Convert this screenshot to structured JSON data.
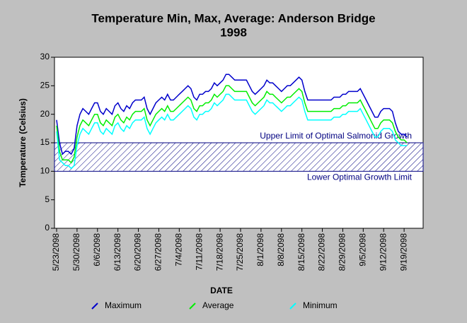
{
  "chart_data": {
    "type": "line",
    "title": "Temperature Min, Max, Average: Anderson Bridge",
    "subtitle": "1998",
    "x_label": "DATE",
    "y_label": "Temperature (Celsius)",
    "categories": [
      "5/23/2098",
      null,
      null,
      null,
      null,
      null,
      null,
      "5/30/2098",
      null,
      null,
      null,
      null,
      null,
      null,
      "6/6/2098",
      null,
      null,
      null,
      null,
      null,
      null,
      "6/13/2098",
      null,
      null,
      null,
      null,
      null,
      null,
      "6/20/2098",
      null,
      null,
      null,
      null,
      null,
      null,
      "6/27/2098",
      null,
      null,
      null,
      null,
      null,
      null,
      "7/4/2098",
      null,
      null,
      null,
      null,
      null,
      null,
      "7/11/2098",
      null,
      null,
      null,
      null,
      null,
      null,
      "7/18/2098",
      null,
      null,
      null,
      null,
      null,
      null,
      "7/25/2098",
      null,
      null,
      null,
      null,
      null,
      null,
      "8/1/2098",
      null,
      null,
      null,
      null,
      null,
      null,
      "8/8/2098",
      null,
      null,
      null,
      null,
      null,
      null,
      "8/15/2098",
      null,
      null,
      null,
      null,
      null,
      null,
      "8/22/2098",
      null,
      null,
      null,
      null,
      null,
      null,
      "8/29/2098",
      null,
      null,
      null,
      null,
      null,
      null,
      "9/5/2098",
      null,
      null,
      null,
      null,
      null,
      null,
      "9/12/2098",
      null,
      null,
      null,
      null,
      null,
      null,
      "9/19/2098",
      null,
      null,
      null,
      null,
      null,
      null,
      null
    ],
    "series": [
      {
        "name": "Maximum",
        "color": "#0000cc",
        "values": [
          19,
          15,
          13,
          13.5,
          13.5,
          13,
          14,
          18,
          20,
          21,
          20.5,
          20,
          21,
          22,
          22,
          20.5,
          20,
          21,
          20.5,
          20,
          21.5,
          22,
          21,
          20.5,
          21.5,
          21,
          22,
          22.5,
          22.5,
          22.5,
          23,
          21,
          20,
          21,
          22,
          22.5,
          23,
          22.5,
          23.5,
          22.5,
          22.5,
          23,
          23.5,
          24,
          24.5,
          25,
          24.5,
          23,
          22.5,
          23.5,
          23.5,
          24,
          24,
          24.5,
          25.5,
          25,
          25.5,
          26,
          27,
          27,
          26.5,
          26,
          26,
          26,
          26,
          26,
          25,
          24,
          23.5,
          24,
          24.5,
          25,
          26,
          25.5,
          25.5,
          25,
          24.5,
          24,
          24.5,
          25,
          25,
          25.5,
          26,
          26.5,
          26,
          24,
          22.5,
          22.5,
          22.5,
          22.5,
          22.5,
          22.5,
          22.5,
          22.5,
          22.5,
          23,
          23,
          23,
          23.5,
          23.5,
          24,
          24,
          24,
          24,
          24.5,
          23.5,
          22.5,
          21.5,
          20.5,
          19.5,
          19.5,
          20.5,
          21,
          21,
          21,
          20.5,
          18.5,
          17,
          16.5,
          16.5,
          16,
          null,
          null,
          null,
          null,
          null,
          null
        ]
      },
      {
        "name": "Average",
        "color": "#00ee00",
        "values": [
          18,
          13.5,
          12,
          12,
          12,
          11.5,
          12.5,
          16,
          18,
          19,
          18.5,
          18,
          19,
          20,
          20,
          18.5,
          18,
          19,
          18.5,
          18,
          19.5,
          20,
          19,
          18.5,
          19.5,
          19,
          20,
          20.5,
          20.5,
          20.5,
          21,
          19,
          18,
          19,
          20,
          20.5,
          21,
          20.5,
          21.5,
          20.5,
          20.5,
          21,
          21.5,
          22,
          22.5,
          23,
          22.5,
          21,
          20.5,
          21.5,
          21.5,
          22,
          22,
          22.5,
          23.5,
          23,
          23.5,
          24,
          25,
          25,
          24.5,
          24,
          24,
          24,
          24,
          24,
          23,
          22,
          21.5,
          22,
          22.5,
          23,
          24,
          23.5,
          23.5,
          23,
          22.5,
          22,
          22.5,
          23,
          23,
          23.5,
          24,
          24.5,
          24,
          22,
          20.5,
          20.5,
          20.5,
          20.5,
          20.5,
          20.5,
          20.5,
          20.5,
          20.5,
          21,
          21,
          21,
          21.5,
          21.5,
          22,
          22,
          22,
          22,
          22.5,
          21.5,
          20.5,
          19.5,
          18.5,
          17.5,
          17.5,
          18.5,
          19,
          19,
          19,
          18.5,
          17,
          16,
          15.5,
          15.5,
          15,
          null,
          null,
          null,
          null,
          null,
          null
        ]
      },
      {
        "name": "Minimum",
        "color": "#00ffff",
        "values": [
          17,
          12,
          11.5,
          11,
          11,
          10.5,
          11,
          14.5,
          16.5,
          17.5,
          17,
          16.5,
          17.5,
          18.5,
          18.5,
          17,
          16.5,
          17.5,
          17,
          16.5,
          18,
          18.5,
          17.5,
          17,
          18,
          17.5,
          18.5,
          19,
          19,
          19,
          19.5,
          17.5,
          16.5,
          17.5,
          18.5,
          19,
          19.5,
          19,
          20,
          19,
          19,
          19.5,
          20,
          20.5,
          21,
          21.5,
          21,
          19.5,
          19,
          20,
          20,
          20.5,
          20.5,
          21,
          22,
          21.5,
          22,
          22.5,
          23.5,
          23.5,
          23,
          22.5,
          22.5,
          22.5,
          22.5,
          22.5,
          21.5,
          20.5,
          20,
          20.5,
          21,
          21.5,
          22.5,
          22,
          22,
          21.5,
          21,
          20.5,
          21,
          21.5,
          21.5,
          22,
          22.5,
          23,
          22.5,
          20.5,
          19,
          19,
          19,
          19,
          19,
          19,
          19,
          19,
          19,
          19.5,
          19.5,
          19.5,
          20,
          20,
          20.5,
          20.5,
          20.5,
          20.5,
          21,
          20,
          19,
          18,
          17,
          16,
          16,
          17,
          17.5,
          17.5,
          17.5,
          17,
          15.5,
          15,
          14.5,
          14.5,
          14.5,
          null,
          null,
          null,
          null,
          null,
          null
        ]
      }
    ],
    "ylim": [
      0,
      30
    ],
    "yticks": [
      0,
      5,
      10,
      15,
      20,
      25,
      30
    ],
    "band": [
      10,
      15
    ],
    "band_color": "#000080",
    "annotations": [
      {
        "text": "Upper Limit of Optimal Salmonid Growth",
        "y": 15
      },
      {
        "text": "Lower Optimal Growth Limit",
        "y": 10
      }
    ],
    "grid": false
  }
}
